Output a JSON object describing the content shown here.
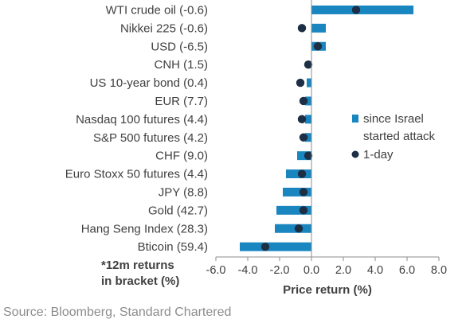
{
  "chart_data": {
    "type": "bar",
    "categories": [
      "WTI crude oil (-0.6)",
      "Nikkei 225 (-0.6)",
      "USD (-6.5)",
      "CNH (1.5)",
      "US 10-year bond (0.4)",
      "EUR (7.7)",
      "Nasdaq 100 futures (4.4)",
      "S&P 500 futures (4.2)",
      "CHF (9.0)",
      "Euro Stoxx 50 futures (4.4)",
      "JPY (8.8)",
      "Gold (42.7)",
      "Hang Seng Index (28.3)",
      "Bticoin (59.4)"
    ],
    "series": [
      {
        "name": "since Israel started attack",
        "mark": "bar",
        "color": "#1a86c0",
        "values": [
          6.4,
          0.9,
          0.9,
          0.0,
          -0.3,
          -0.4,
          -0.4,
          -0.4,
          -0.9,
          -1.6,
          -1.8,
          -2.2,
          -2.3,
          -4.5
        ]
      },
      {
        "name": "1-day",
        "mark": "dot",
        "color": "#1c2f44",
        "values": [
          2.8,
          -0.6,
          0.4,
          -0.2,
          -0.7,
          -0.5,
          -0.6,
          -0.5,
          -0.2,
          -0.6,
          -0.5,
          -0.5,
          -0.8,
          -2.9
        ]
      }
    ],
    "legend_lines": [
      [
        "since Israel",
        "started attack"
      ],
      [
        "1-day"
      ]
    ],
    "legend_placement": "right",
    "xlabel": "Price return (%)",
    "xlim": [
      -6,
      8
    ],
    "xticks": [
      -6,
      -4,
      -2,
      0,
      2,
      4,
      6,
      8
    ],
    "xtick_labels": [
      "-6.0",
      "-4.0",
      "-2.0",
      "0.0",
      "2.0",
      "4.0",
      "6.0",
      "8.0"
    ],
    "grid": false,
    "note_lines": [
      "*12m returns",
      "in bracket (%)"
    ],
    "source": "Source: Bloomberg, Standard Chartered"
  }
}
